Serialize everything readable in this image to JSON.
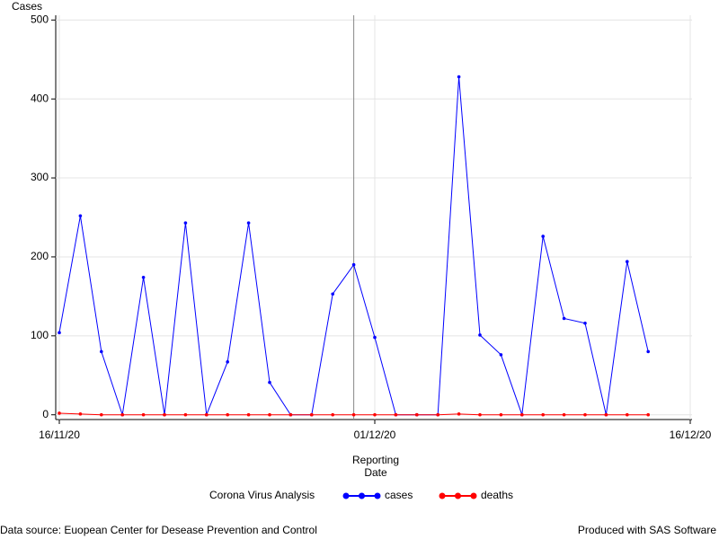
{
  "chart_data": {
    "type": "line",
    "y_label": "Cases",
    "x_label": "Reporting Date",
    "legend_title": "Corona Virus Analysis",
    "footer_left": "Data source: Euopean Center for Desease Prevention and Control",
    "footer_right": "Produced with SAS Software",
    "x": [
      "16/11/20",
      "17/11/20",
      "18/11/20",
      "19/11/20",
      "20/11/20",
      "21/11/20",
      "22/11/20",
      "23/11/20",
      "24/11/20",
      "25/11/20",
      "26/11/20",
      "27/11/20",
      "28/11/20",
      "29/11/20",
      "30/11/20",
      "01/12/20",
      "02/12/20",
      "03/12/20",
      "04/12/20",
      "05/12/20",
      "06/12/20",
      "07/12/20",
      "08/12/20",
      "09/12/20",
      "10/12/20",
      "11/12/20",
      "12/12/20",
      "13/12/20",
      "14/12/20"
    ],
    "series": [
      {
        "name": "cases",
        "color": "#0000ff",
        "values": [
          104,
          252,
          80,
          0,
          174,
          0,
          243,
          0,
          67,
          243,
          41,
          0,
          0,
          153,
          190,
          98,
          0,
          0,
          0,
          428,
          101,
          76,
          0,
          226,
          122,
          116,
          0,
          194,
          80
        ]
      },
      {
        "name": "deaths",
        "color": "#ff0000",
        "values": [
          2,
          1,
          0,
          0,
          0,
          0,
          0,
          0,
          0,
          0,
          0,
          0,
          0,
          0,
          0,
          0,
          0,
          0,
          0,
          1,
          0,
          0,
          0,
          0,
          0,
          0,
          0,
          0,
          0
        ]
      }
    ],
    "xlim": [
      "16/11/20",
      "16/12/20"
    ],
    "xticks": [
      "16/11/20",
      "01/12/20",
      "16/12/20"
    ],
    "ylim": [
      -6,
      506
    ],
    "yticks": [
      0,
      100,
      200,
      300,
      400,
      500
    ],
    "refline": "30/11/20",
    "grid": true
  }
}
